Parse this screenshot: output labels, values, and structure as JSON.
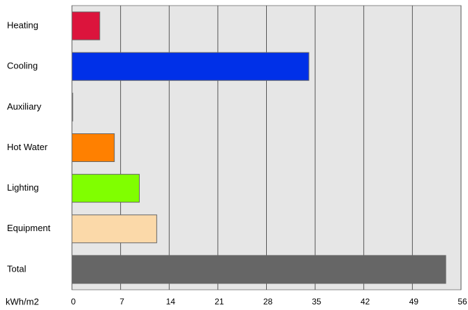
{
  "chart_data": {
    "type": "hbar",
    "x_label": "kWh/m2",
    "categories": [
      "Heating",
      "Cooling",
      "Auxiliary",
      "Hot Water",
      "Lighting",
      "Equipment",
      "Total"
    ],
    "values": [
      4.0,
      34.1,
      0.1,
      6.1,
      9.7,
      12.2,
      53.8
    ],
    "colors": [
      "#dc143c",
      "#0030e8",
      "#999999",
      "#ff8000",
      "#80ff00",
      "#fbd9a9",
      "#666666"
    ],
    "xlim": [
      0,
      56
    ],
    "xticks": [
      0,
      7,
      14,
      21,
      28,
      35,
      42,
      49,
      56
    ],
    "grid": true
  }
}
